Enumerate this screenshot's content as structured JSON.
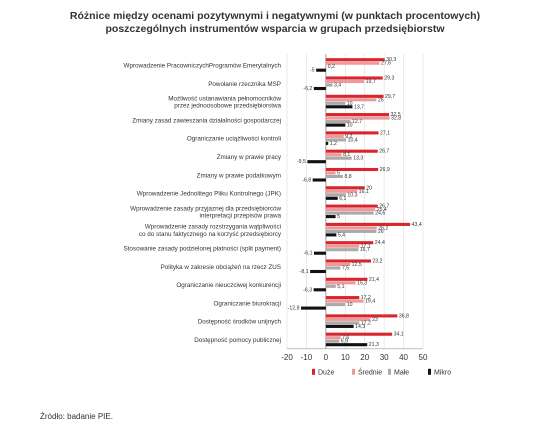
{
  "title": {
    "line1": "Różnice między ocenami pozytywnymi i negatywnymi (w punktach procentowych)",
    "line2": "poszczególnych instrumentów wsparcia w grupach przedsiębiorstw"
  },
  "source": "Źródło: badanie PIE.",
  "chart_data": {
    "type": "bar",
    "orientation": "horizontal",
    "xlim": [
      -20,
      50
    ],
    "x_ticks": [
      -20,
      -10,
      0,
      10,
      20,
      30,
      40,
      50
    ],
    "legend_position": "bottom",
    "categories": [
      [
        "Wprowadzenie PracowniczychProgramów Emerytalnych"
      ],
      [
        "Powołanie rzecznika MSP"
      ],
      [
        "Możliwość ustanawiania pełnomocników",
        "przez jednoosobowe przedsiębiorstwa"
      ],
      [
        "Zmiany zasad zawieszania działalności gospodarczej"
      ],
      [
        "Ograniczanie uciążliwości kontroli"
      ],
      [
        "Zmiany w prawie pracy"
      ],
      [
        "Zmiany w prawie podatkowym"
      ],
      [
        "Wprowadzenie Jednolitego Pliku Kontrolnego (JPK)"
      ],
      [
        "Wprowadzenie zasady przyjaznej dla przedsiębiorców",
        "interpretacji przepisów prawa"
      ],
      [
        "Wprowadzenie zasady rozstrzygania wątpliwości",
        "co do stanu faktycznego na korzyść przedsiębiorcy"
      ],
      [
        "Stosowanie zasady podzielonej płatności (split payment)"
      ],
      [
        "Polityka w zakresie obciążeń na rzecz ZUS"
      ],
      [
        "Ograniczanie nieuczciwej konkurencji"
      ],
      [
        "Ograniczanie biurokracji"
      ],
      [
        "Dostępność środków unijnych"
      ],
      [
        "Dostępność pomocy publicznej"
      ]
    ],
    "series": [
      {
        "name": "Duże",
        "color": "#d9262c",
        "values": [
          30.3,
          29.3,
          29.7,
          32.5,
          27.1,
          26.7,
          26.9,
          20.0,
          26.7,
          43.4,
          24.4,
          23.2,
          21.4,
          17.2,
          36.8,
          34.1
        ]
      },
      {
        "name": "Średnie",
        "color": "#ee9a9d",
        "values": [
          27.6,
          19.7,
          26.0,
          32.8,
          9.2,
          8.1,
          5.0,
          16.1,
          25.4,
          26.2,
          17.1,
          12.5,
          15.3,
          19.4,
          23.0,
          7.6
        ]
      },
      {
        "name": "Małe",
        "color": "#aaaaaa",
        "values": [
          0.2,
          3.4,
          10.0,
          12.7,
          10.4,
          13.3,
          8.8,
          10.3,
          24.6,
          26.0,
          16.7,
          7.5,
          5.1,
          10.0,
          17.2,
          6.9
        ]
      },
      {
        "name": "Mikro",
        "color": "#111111",
        "values": [
          -5.0,
          -6.2,
          13.7,
          10.0,
          1.2,
          -9.5,
          -6.8,
          6.1,
          5.0,
          5.4,
          -6.1,
          -8.1,
          -6.3,
          -12.8,
          14.3,
          21.3
        ]
      }
    ]
  }
}
